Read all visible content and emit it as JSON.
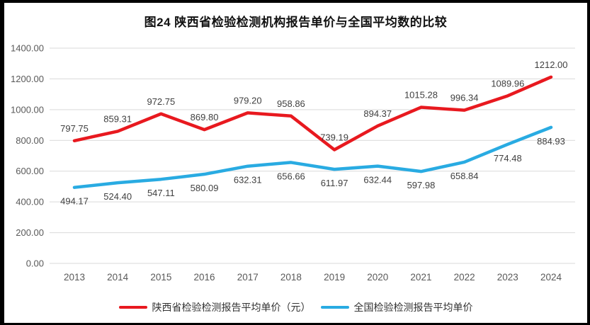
{
  "title": "图24 陕西省检验检测机构报告单价与全国平均数的比较",
  "chart_data": {
    "type": "line",
    "categories": [
      "2013",
      "2014",
      "2015",
      "2016",
      "2017",
      "2018",
      "2019",
      "2020",
      "2021",
      "2022",
      "2023",
      "2024"
    ],
    "series": [
      {
        "name": "陕西省检验检测报告平均单价（元）",
        "color": "#e8191f",
        "label_position": "above",
        "values": [
          797.75,
          859.31,
          972.75,
          869.8,
          979.2,
          958.86,
          739.19,
          894.37,
          1015.28,
          996.34,
          1089.96,
          1212.0
        ]
      },
      {
        "name": "全国检验检测报告平均单价",
        "color": "#29abe2",
        "label_position": "below",
        "values": [
          494.17,
          524.4,
          547.11,
          580.09,
          632.31,
          656.66,
          611.97,
          632.44,
          597.98,
          658.84,
          774.48,
          884.93
        ]
      }
    ],
    "xlabel": "",
    "ylabel": "",
    "ylim": [
      0,
      1400
    ],
    "y_tick_step": 200,
    "grid": true,
    "legend_position": "bottom",
    "gridline_color": "#d9d9d9",
    "tick_label_color": "#595959",
    "data_label_color": "#404040"
  }
}
